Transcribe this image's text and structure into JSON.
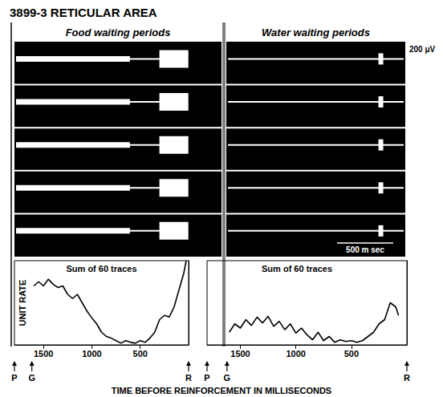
{
  "title": "3899-3 RETICULAR AREA",
  "xlabel": "TIME BEFORE REINFORCEMENT IN MILLISECONDS",
  "scale_bars": {
    "amplitude": "200 μV",
    "time": "500 m sec"
  },
  "chart_data": [
    {
      "type": "line",
      "title": "Food waiting periods",
      "annotation": "Sum of 60 traces",
      "ylabel": "UNIT RATE",
      "x": [
        1600,
        1550,
        1500,
        1450,
        1400,
        1350,
        1300,
        1250,
        1200,
        1150,
        1100,
        1050,
        1000,
        950,
        900,
        850,
        800,
        750,
        700,
        650,
        600,
        550,
        500,
        450,
        400,
        350,
        300,
        250,
        200,
        150,
        100,
        50,
        25
      ],
      "values": [
        7,
        7.5,
        7,
        7.8,
        7.2,
        6.8,
        7,
        6,
        5.5,
        6,
        5,
        4,
        3.2,
        2.5,
        1.5,
        1,
        0.8,
        0.5,
        0.2,
        0.5,
        0.3,
        0.2,
        0.5,
        0.3,
        0.8,
        1.5,
        3,
        3.5,
        3.3,
        4.5,
        6.5,
        8.5,
        10
      ],
      "xlim": [
        1800,
        0
      ],
      "xticks": [
        1500,
        1000,
        500
      ],
      "ylim": [
        0,
        10
      ],
      "tick_labels": "x",
      "color": "#000000",
      "markers": [
        {
          "label": "P",
          "x": 1800
        },
        {
          "label": "G",
          "x": 1620
        },
        {
          "label": "R",
          "x": 0
        }
      ]
    },
    {
      "type": "line",
      "title": "Water waiting periods",
      "annotation": "Sum of 60 traces",
      "x": [
        1600,
        1550,
        1500,
        1450,
        1400,
        1350,
        1300,
        1250,
        1200,
        1150,
        1100,
        1050,
        1000,
        950,
        900,
        850,
        800,
        750,
        700,
        650,
        600,
        550,
        500,
        450,
        400,
        350,
        300,
        250,
        200,
        150,
        100,
        75
      ],
      "values": [
        1.5,
        2.5,
        2,
        3,
        2.3,
        3.3,
        2.6,
        3.4,
        2.2,
        2.8,
        1.8,
        2.5,
        1.4,
        2,
        1.2,
        0.6,
        1.5,
        0.5,
        1,
        0.3,
        0.6,
        0.4,
        0.5,
        0.3,
        0.5,
        1,
        1.5,
        2.5,
        3,
        5,
        4.5,
        3.5
      ],
      "xlim": [
        1800,
        0
      ],
      "xticks": [
        1500,
        1000,
        500
      ],
      "ylim": [
        0,
        10
      ],
      "tick_labels": "x",
      "color": "#000000",
      "markers": [
        {
          "label": "P",
          "x": 1800
        },
        {
          "label": "G",
          "x": 1620
        },
        {
          "label": "R",
          "x": 0
        }
      ]
    }
  ]
}
